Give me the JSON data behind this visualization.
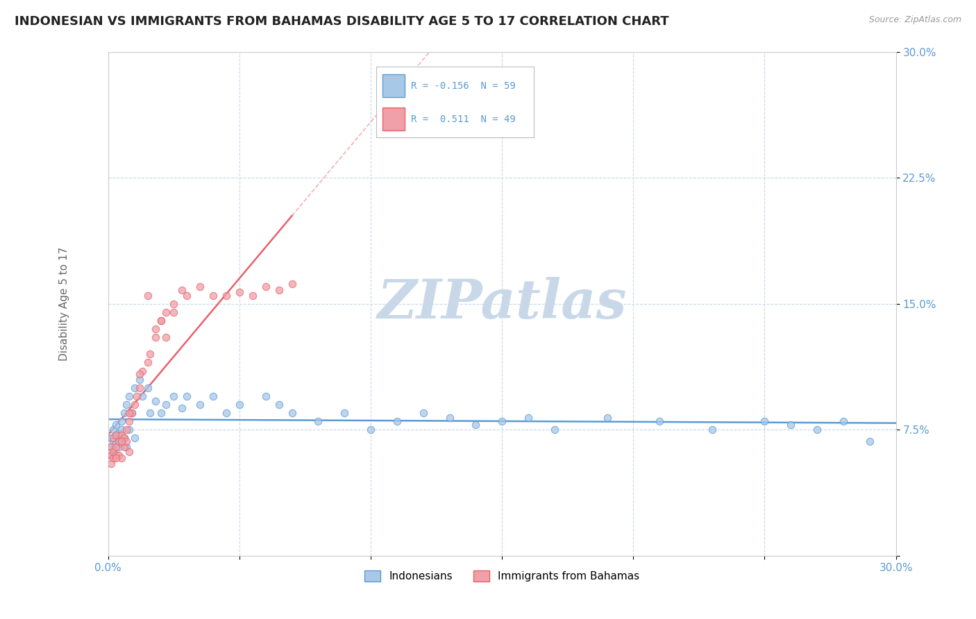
{
  "title": "INDONESIAN VS IMMIGRANTS FROM BAHAMAS DISABILITY AGE 5 TO 17 CORRELATION CHART",
  "source_text": "Source: ZipAtlas.com",
  "ylabel": "Disability Age 5 to 17",
  "xlim": [
    0,
    0.3
  ],
  "ylim": [
    0,
    0.3
  ],
  "xticks": [
    0.0,
    0.05,
    0.1,
    0.15,
    0.2,
    0.25,
    0.3
  ],
  "yticks": [
    0.0,
    0.075,
    0.15,
    0.225,
    0.3
  ],
  "xticklabels": [
    "0.0%",
    "",
    "",
    "",
    "",
    "",
    "30.0%"
  ],
  "yticklabels": [
    "",
    "7.5%",
    "15.0%",
    "22.5%",
    "30.0%"
  ],
  "blue_color": "#5b9bd5",
  "pink_color": "#e8606a",
  "blue_scatter_color": "#a8c8e8",
  "pink_scatter_color": "#f0a0a8",
  "watermark_text": "ZIPatlas",
  "watermark_color": "#c8d8e8",
  "background_color": "#ffffff",
  "grid_color": "#c8d8e8",
  "R_blue": -0.156,
  "N_blue": 59,
  "R_pink": 0.511,
  "N_pink": 49,
  "blue_x": [
    0.001,
    0.001,
    0.001,
    0.002,
    0.002,
    0.002,
    0.003,
    0.003,
    0.003,
    0.004,
    0.004,
    0.004,
    0.005,
    0.005,
    0.005,
    0.006,
    0.006,
    0.007,
    0.007,
    0.008,
    0.008,
    0.009,
    0.01,
    0.01,
    0.012,
    0.013,
    0.015,
    0.016,
    0.018,
    0.02,
    0.022,
    0.025,
    0.028,
    0.03,
    0.035,
    0.04,
    0.045,
    0.05,
    0.06,
    0.065,
    0.07,
    0.08,
    0.09,
    0.1,
    0.11,
    0.12,
    0.13,
    0.14,
    0.15,
    0.17,
    0.19,
    0.21,
    0.23,
    0.25,
    0.26,
    0.27,
    0.28,
    0.29,
    0.16
  ],
  "blue_y": [
    0.065,
    0.07,
    0.06,
    0.068,
    0.075,
    0.063,
    0.072,
    0.067,
    0.078,
    0.07,
    0.065,
    0.073,
    0.08,
    0.068,
    0.075,
    0.085,
    0.07,
    0.09,
    0.065,
    0.095,
    0.075,
    0.085,
    0.1,
    0.07,
    0.105,
    0.095,
    0.1,
    0.085,
    0.092,
    0.085,
    0.09,
    0.095,
    0.088,
    0.095,
    0.09,
    0.095,
    0.085,
    0.09,
    0.095,
    0.09,
    0.085,
    0.08,
    0.085,
    0.075,
    0.08,
    0.085,
    0.082,
    0.078,
    0.08,
    0.075,
    0.082,
    0.08,
    0.075,
    0.08,
    0.078,
    0.075,
    0.08,
    0.068,
    0.082
  ],
  "pink_x": [
    0.001,
    0.001,
    0.001,
    0.002,
    0.002,
    0.002,
    0.003,
    0.003,
    0.003,
    0.004,
    0.004,
    0.005,
    0.005,
    0.006,
    0.006,
    0.007,
    0.007,
    0.008,
    0.008,
    0.009,
    0.01,
    0.011,
    0.012,
    0.013,
    0.015,
    0.016,
    0.018,
    0.02,
    0.022,
    0.025,
    0.028,
    0.03,
    0.035,
    0.04,
    0.045,
    0.05,
    0.055,
    0.06,
    0.065,
    0.07,
    0.015,
    0.02,
    0.025,
    0.018,
    0.022,
    0.012,
    0.008,
    0.005,
    0.003
  ],
  "pink_y": [
    0.06,
    0.055,
    0.065,
    0.058,
    0.062,
    0.07,
    0.06,
    0.065,
    0.072,
    0.06,
    0.068,
    0.058,
    0.072,
    0.065,
    0.07,
    0.075,
    0.068,
    0.08,
    0.062,
    0.085,
    0.09,
    0.095,
    0.1,
    0.11,
    0.115,
    0.12,
    0.13,
    0.14,
    0.145,
    0.15,
    0.158,
    0.155,
    0.16,
    0.155,
    0.155,
    0.157,
    0.155,
    0.16,
    0.158,
    0.162,
    0.155,
    0.14,
    0.145,
    0.135,
    0.13,
    0.108,
    0.085,
    0.068,
    0.058
  ]
}
